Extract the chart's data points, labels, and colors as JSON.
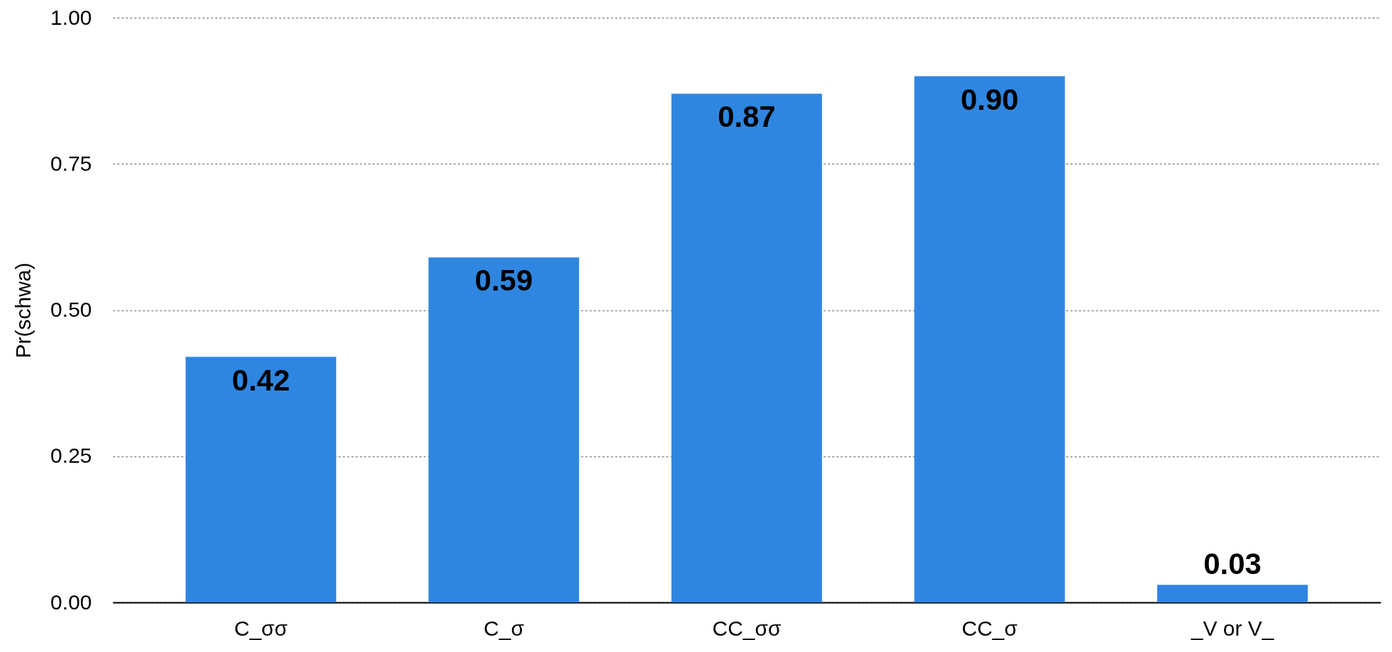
{
  "chart_data": {
    "type": "bar",
    "ylabel": "Pr(schwa)",
    "categories": [
      "C_σσ",
      "C_σ",
      "CC_σσ",
      "CC_σ",
      "_V or V_"
    ],
    "values": [
      0.42,
      0.59,
      0.87,
      0.9,
      0.03
    ],
    "value_labels": [
      "0.42",
      "0.59",
      "0.87",
      "0.90",
      "0.03"
    ],
    "color": "#2f86e0",
    "ylim": [
      0,
      1
    ],
    "yticks": [
      {
        "value": 0,
        "label": "0.00"
      },
      {
        "value": 0.25,
        "label": "0.25"
      },
      {
        "value": 0.5,
        "label": "0.50"
      },
      {
        "value": 0.75,
        "label": "0.75"
      },
      {
        "value": 1,
        "label": "1.00"
      }
    ],
    "grid": "y"
  }
}
